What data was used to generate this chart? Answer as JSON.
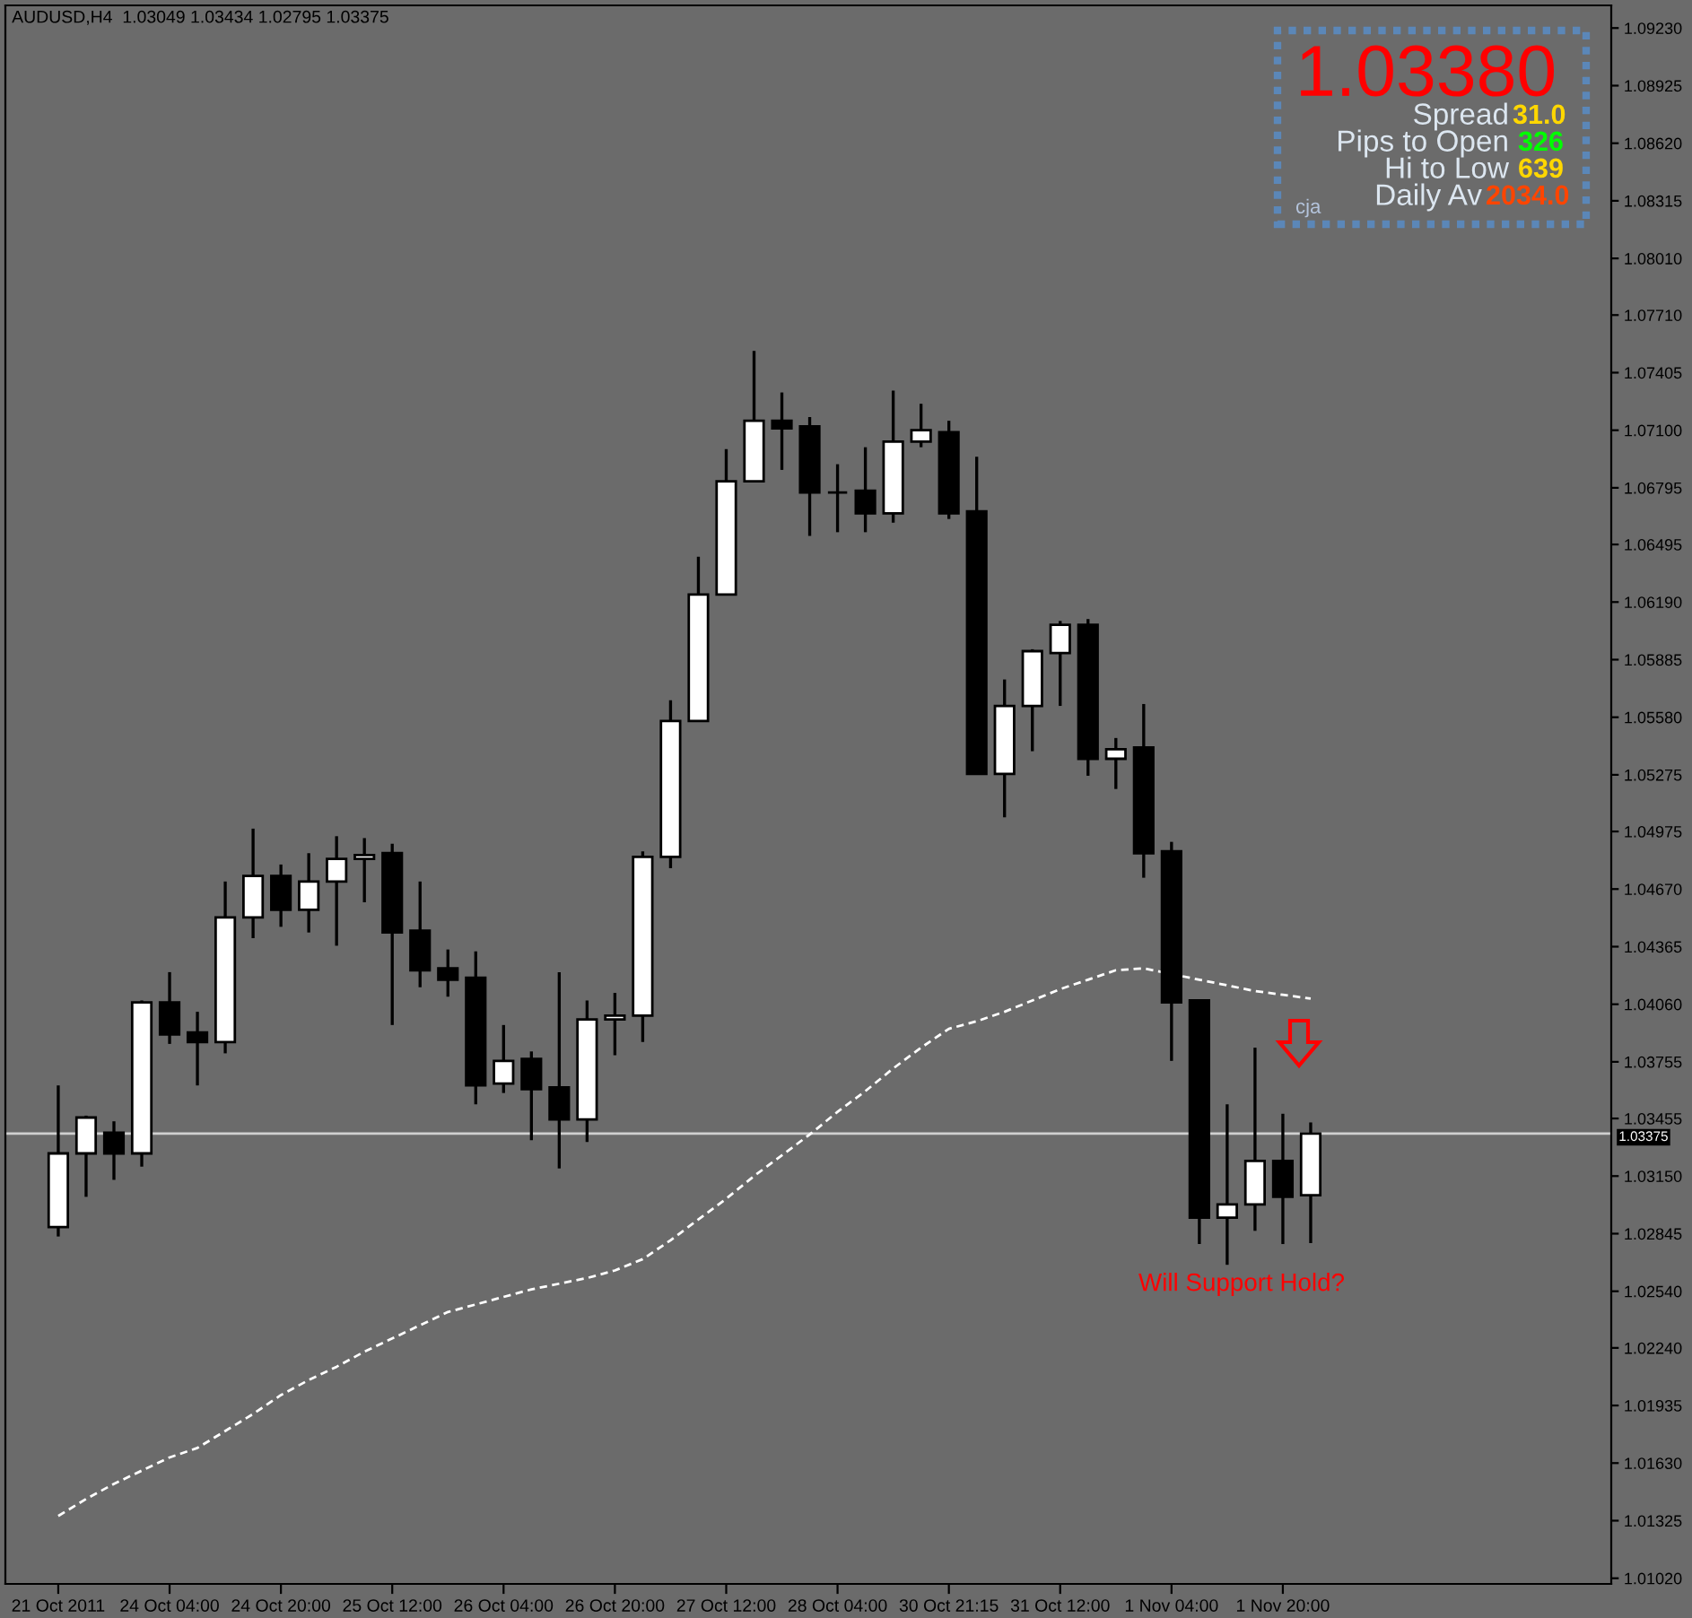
{
  "chart_data": {
    "type": "candlestick",
    "title": "AUDUSD,H4  1.03049 1.03434 1.02795 1.03375",
    "categories": [
      "21 Oct 2011",
      null,
      null,
      null,
      "24 Oct 04:00",
      null,
      null,
      null,
      "24 Oct 20:00",
      null,
      null,
      null,
      "25 Oct 12:00",
      null,
      null,
      null,
      "26 Oct 04:00",
      null,
      null,
      null,
      "26 Oct 20:00",
      null,
      null,
      null,
      "27 Oct 12:00",
      null,
      null,
      null,
      "28 Oct 04:00",
      null,
      null,
      null,
      "30 Oct 21:15",
      null,
      null,
      null,
      "31 Oct 12:00",
      null,
      null,
      null,
      "1 Nov 04:00",
      null,
      null,
      null,
      "1 Nov 20:00",
      null
    ],
    "ohlc": [
      [
        1.0288,
        1.0363,
        1.0283,
        1.0327
      ],
      [
        1.0327,
        1.0347,
        1.0304,
        1.0346
      ],
      [
        1.0338,
        1.0344,
        1.0313,
        1.0327
      ],
      [
        1.0327,
        1.0408,
        1.032,
        1.0407
      ],
      [
        1.0407,
        1.0423,
        1.0385,
        1.039
      ],
      [
        1.0391,
        1.0402,
        1.0363,
        1.0386
      ],
      [
        1.0386,
        1.0471,
        1.038,
        1.0452
      ],
      [
        1.0452,
        1.0499,
        1.0441,
        1.0474
      ],
      [
        1.0474,
        1.048,
        1.0447,
        1.0456
      ],
      [
        1.0456,
        1.0486,
        1.0444,
        1.0471
      ],
      [
        1.0471,
        1.0495,
        1.0437,
        1.0483
      ],
      [
        1.0483,
        1.0494,
        1.046,
        1.0485
      ],
      [
        1.0486,
        1.0491,
        1.0395,
        1.0444
      ],
      [
        1.0445,
        1.0471,
        1.0415,
        1.0424
      ],
      [
        1.0425,
        1.0435,
        1.041,
        1.0419
      ],
      [
        1.042,
        1.0434,
        1.0353,
        1.0363
      ],
      [
        1.0364,
        1.0395,
        1.0359,
        1.0376
      ],
      [
        1.0377,
        1.0381,
        1.0334,
        1.0361
      ],
      [
        1.0362,
        1.0423,
        1.0319,
        1.0345
      ],
      [
        1.0345,
        1.0408,
        1.0333,
        1.0398
      ],
      [
        1.0398,
        1.0412,
        1.0379,
        1.04
      ],
      [
        1.04,
        1.0487,
        1.0386,
        1.0484
      ],
      [
        1.0484,
        1.0567,
        1.0478,
        1.0556
      ],
      [
        1.0556,
        1.0643,
        1.0556,
        1.0623
      ],
      [
        1.0623,
        1.07,
        1.0623,
        1.0683
      ],
      [
        1.0683,
        1.0752,
        1.0683,
        1.0715
      ],
      [
        1.0715,
        1.073,
        1.0689,
        1.0711
      ],
      [
        1.0712,
        1.0717,
        1.0654,
        1.0677
      ],
      [
        1.0677,
        1.0692,
        1.0656,
        1.0677
      ],
      [
        1.0678,
        1.0701,
        1.0656,
        1.0666
      ],
      [
        1.0666,
        1.0731,
        1.0661,
        1.0704
      ],
      [
        1.0704,
        1.0724,
        1.0701,
        1.071
      ],
      [
        1.0709,
        1.0715,
        1.0663,
        1.0666
      ],
      [
        1.0667,
        1.0696,
        1.0528,
        1.0528
      ],
      [
        1.0528,
        1.0578,
        1.0505,
        1.0564
      ],
      [
        1.0564,
        1.0594,
        1.054,
        1.0593
      ],
      [
        1.0592,
        1.0609,
        1.0564,
        1.0607
      ],
      [
        1.0607,
        1.061,
        1.0527,
        1.0536
      ],
      [
        1.0536,
        1.0547,
        1.052,
        1.0541
      ],
      [
        1.0542,
        1.0565,
        1.0473,
        1.0486
      ],
      [
        1.0487,
        1.0492,
        1.0376,
        1.0407
      ],
      [
        1.0408,
        1.0408,
        1.0279,
        1.0293
      ],
      [
        1.0293,
        1.0353,
        1.0268,
        1.03
      ],
      [
        1.03,
        1.0383,
        1.0286,
        1.0323
      ],
      [
        1.0323,
        1.0348,
        1.0279,
        1.0304
      ],
      [
        1.03049,
        1.03434,
        1.02795,
        1.03375
      ]
    ],
    "colors": [
      "#ffffff",
      "#ffffff",
      "#000000",
      "#ffffff",
      "#000000",
      "#000000",
      "#ffffff",
      "#ffffff",
      "#000000",
      "#ffffff",
      "#ffffff",
      "#ffffff",
      "#000000",
      "#000000",
      "#000000",
      "#000000",
      "#ffffff",
      "#000000",
      "#000000",
      "#ffffff",
      "#ffffff",
      "#ffffff",
      "#ffffff",
      "#ffffff",
      "#ffffff",
      "#ffffff",
      "#000000",
      "#000000",
      "#000000",
      "#000000",
      "#ffffff",
      "#ffffff",
      "#000000",
      "#000000",
      "#ffffff",
      "#ffffff",
      "#ffffff",
      "#000000",
      "#ffffff",
      "#000000",
      "#000000",
      "#000000",
      "#ffffff",
      "#ffffff",
      "#000000",
      "#ffffff"
    ],
    "series": [
      {
        "type": "line",
        "color": "#ffffff",
        "line_style": "dashed",
        "values": [
          1.0135,
          1.0144,
          1.0152,
          1.0159,
          1.0166,
          1.0171,
          1.018,
          1.0189,
          1.0199,
          1.0207,
          1.0214,
          1.0222,
          1.0229,
          1.0236,
          1.0243,
          1.0247,
          1.0251,
          1.0255,
          1.0258,
          1.0261,
          1.0265,
          1.0271,
          1.0281,
          1.0292,
          1.0303,
          1.0315,
          1.0326,
          1.0337,
          1.0349,
          1.036,
          1.0372,
          1.0383,
          1.0393,
          1.0397,
          1.0402,
          1.0408,
          1.0414,
          1.0419,
          1.0424,
          1.0425,
          null,
          1.0419,
          1.0416,
          1.0413,
          1.0411,
          1.0409
        ]
      }
    ],
    "ylim": [
      1.0099,
      1.0935
    ],
    "yticks": [
      {
        "value": 1.0923,
        "label": "1.09230"
      },
      {
        "value": 1.08925,
        "label": "1.08925"
      },
      {
        "value": 1.0862,
        "label": "1.08620"
      },
      {
        "value": 1.08315,
        "label": "1.08315"
      },
      {
        "value": 1.0801,
        "label": "1.08010"
      },
      {
        "value": 1.0771,
        "label": "1.07710"
      },
      {
        "value": 1.07405,
        "label": "1.07405"
      },
      {
        "value": 1.071,
        "label": "1.07100"
      },
      {
        "value": 1.06795,
        "label": "1.06795"
      },
      {
        "value": 1.06495,
        "label": "1.06495"
      },
      {
        "value": 1.0619,
        "label": "1.06190"
      },
      {
        "value": 1.05885,
        "label": "1.05885"
      },
      {
        "value": 1.0558,
        "label": "1.05580"
      },
      {
        "value": 1.05275,
        "label": "1.05275"
      },
      {
        "value": 1.04975,
        "label": "1.04975"
      },
      {
        "value": 1.0467,
        "label": "1.04670"
      },
      {
        "value": 1.04365,
        "label": "1.04365"
      },
      {
        "value": 1.0406,
        "label": "1.04060"
      },
      {
        "value": 1.03755,
        "label": "1.03755"
      },
      {
        "value": 1.03455,
        "label": "1.03455"
      },
      {
        "value": 1.0315,
        "label": "1.03150"
      },
      {
        "value": 1.02845,
        "label": "1.02845"
      },
      {
        "value": 1.0254,
        "label": "1.02540"
      },
      {
        "value": 1.0224,
        "label": "1.02240"
      },
      {
        "value": 1.01935,
        "label": "1.01935"
      },
      {
        "value": 1.0163,
        "label": "1.01630"
      },
      {
        "value": 1.01325,
        "label": "1.01325"
      },
      {
        "value": 1.0102,
        "label": "1.01020"
      }
    ],
    "ref_lines": [
      {
        "axis": "y",
        "value": 1.03375,
        "label": "1.03375",
        "color": "#d0d0d0"
      }
    ],
    "annotations": [
      "1.03380",
      "Spread",
      "31.0",
      "Pips to Open",
      "326",
      "Hi to Low",
      "639",
      "Daily Av",
      "2034.0",
      "cja",
      "Will Support Hold?"
    ],
    "grid": false
  }
}
